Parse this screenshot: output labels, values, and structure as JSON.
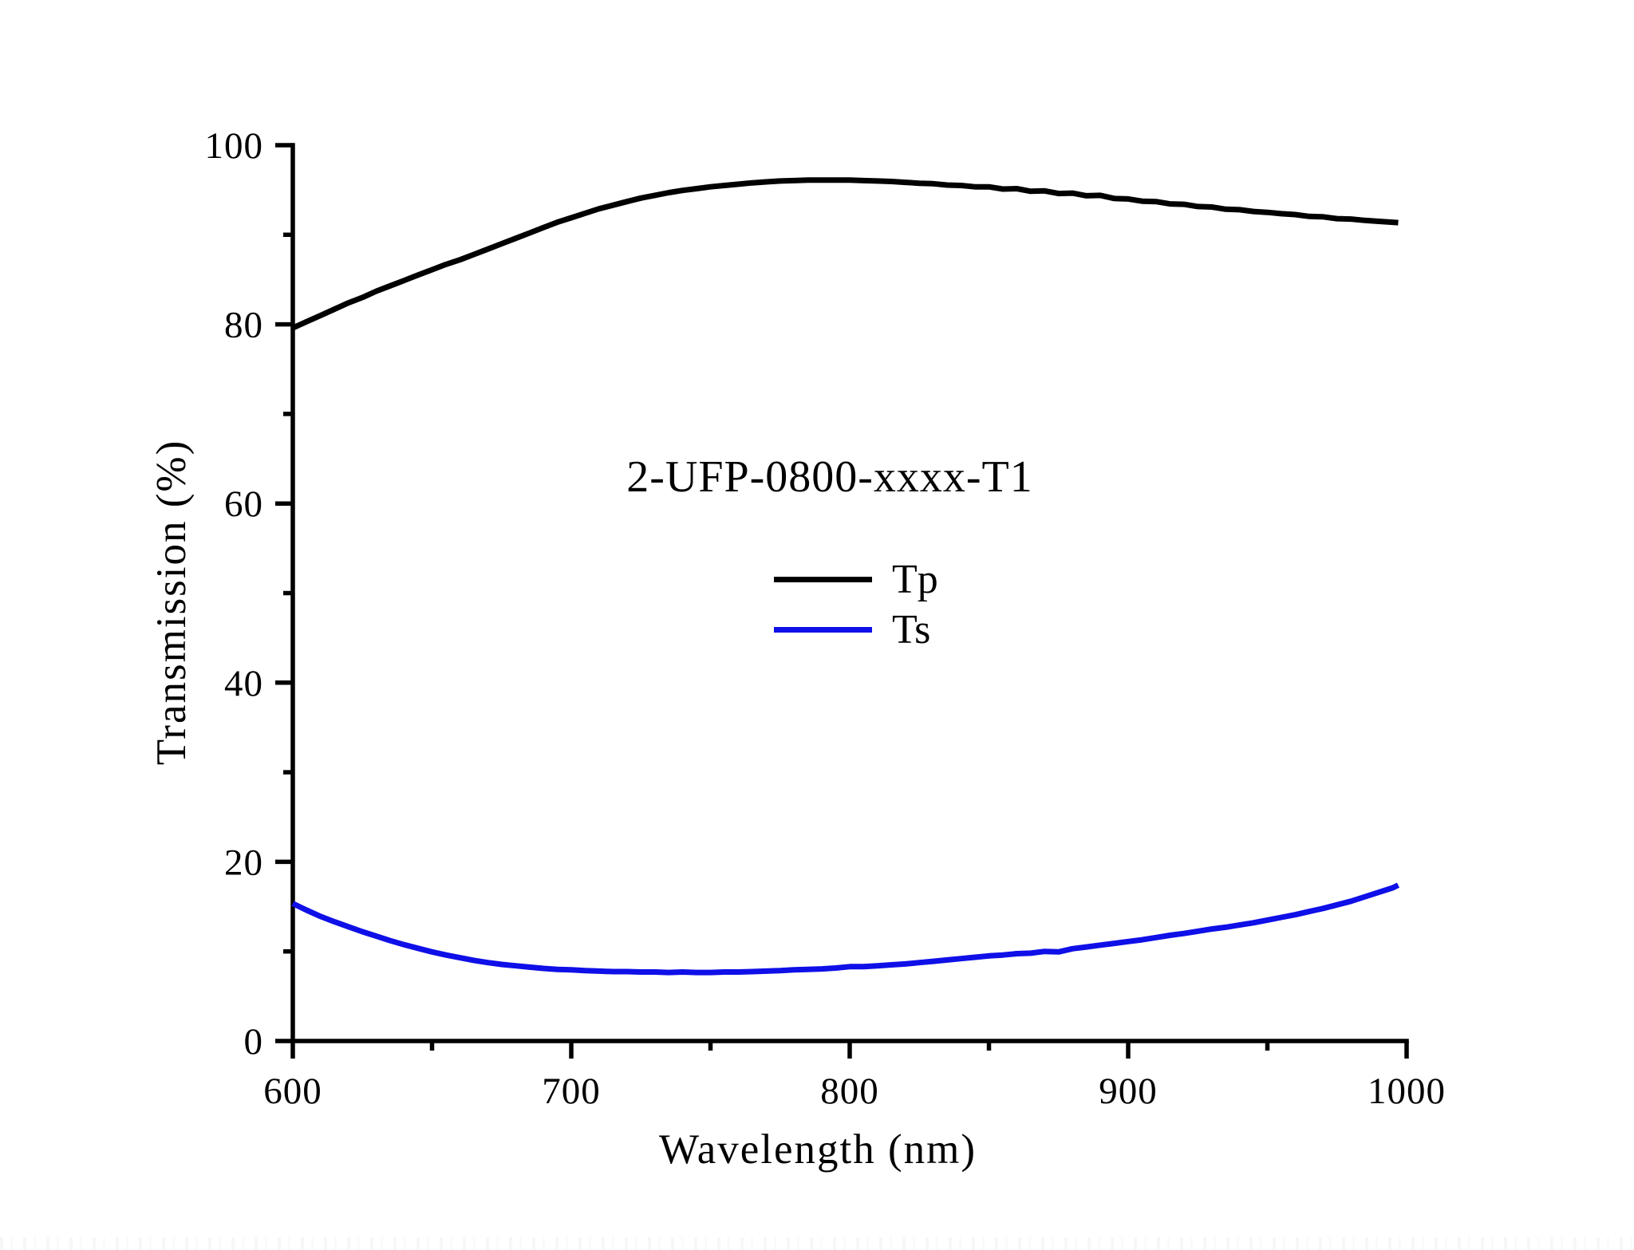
{
  "chart_data": {
    "type": "line",
    "title": "2-UFP-0800-xxxx-T1",
    "xlabel": "Wavelength (nm)",
    "ylabel": "Transmission (%)",
    "xlim": [
      600,
      1000
    ],
    "ylim": [
      0,
      100
    ],
    "x_ticks": [
      600,
      700,
      800,
      900,
      1000
    ],
    "x_minor_ticks": [
      650,
      750,
      850,
      950
    ],
    "y_ticks": [
      0,
      20,
      40,
      60,
      80,
      100
    ],
    "y_minor_ticks": [
      10,
      30,
      50,
      70,
      90
    ],
    "grid": false,
    "legend_position": "center",
    "background_color": "#ffffff",
    "axis_color": "#000000",
    "x": [
      600,
      605,
      610,
      615,
      620,
      625,
      630,
      635,
      640,
      645,
      650,
      655,
      660,
      665,
      670,
      675,
      680,
      685,
      690,
      695,
      700,
      705,
      710,
      715,
      720,
      725,
      730,
      735,
      740,
      745,
      750,
      755,
      760,
      765,
      770,
      775,
      780,
      785,
      790,
      795,
      800,
      805,
      810,
      815,
      820,
      825,
      830,
      835,
      840,
      845,
      850,
      855,
      860,
      865,
      870,
      875,
      880,
      885,
      890,
      895,
      900,
      905,
      910,
      915,
      920,
      925,
      930,
      935,
      940,
      945,
      950,
      955,
      960,
      965,
      970,
      975,
      980,
      985,
      990,
      995,
      997
    ],
    "series": [
      {
        "name": "Tp",
        "color": "#000000",
        "values": [
          79.6,
          80.3,
          81.0,
          81.7,
          82.4,
          83.0,
          83.7,
          84.3,
          84.9,
          85.5,
          86.1,
          86.7,
          87.2,
          87.8,
          88.4,
          89.0,
          89.6,
          90.2,
          90.8,
          91.4,
          91.9,
          92.4,
          92.9,
          93.3,
          93.7,
          94.1,
          94.4,
          94.7,
          94.95,
          95.15,
          95.35,
          95.5,
          95.65,
          95.8,
          95.9,
          96.0,
          96.05,
          96.1,
          96.1,
          96.1,
          96.1,
          96.05,
          96.0,
          95.95,
          95.85,
          95.75,
          95.7,
          95.55,
          95.5,
          95.35,
          95.35,
          95.1,
          95.15,
          94.85,
          94.9,
          94.6,
          94.65,
          94.35,
          94.4,
          94.05,
          94.0,
          93.75,
          93.7,
          93.45,
          93.4,
          93.15,
          93.1,
          92.85,
          92.8,
          92.6,
          92.5,
          92.35,
          92.25,
          92.05,
          92.0,
          91.8,
          91.75,
          91.6,
          91.5,
          91.4,
          91.35
        ]
      },
      {
        "name": "Ts",
        "color": "#0f0fe8",
        "values": [
          15.35,
          14.6,
          13.9,
          13.3,
          12.75,
          12.2,
          11.7,
          11.2,
          10.75,
          10.35,
          9.95,
          9.6,
          9.3,
          9.0,
          8.75,
          8.55,
          8.4,
          8.25,
          8.1,
          8.0,
          7.95,
          7.85,
          7.8,
          7.75,
          7.75,
          7.7,
          7.7,
          7.65,
          7.7,
          7.65,
          7.65,
          7.7,
          7.7,
          7.75,
          7.8,
          7.85,
          7.95,
          8.0,
          8.05,
          8.15,
          8.3,
          8.3,
          8.4,
          8.5,
          8.6,
          8.75,
          8.9,
          9.05,
          9.2,
          9.35,
          9.5,
          9.6,
          9.75,
          9.8,
          10.0,
          9.95,
          10.3,
          10.5,
          10.7,
          10.9,
          11.1,
          11.3,
          11.55,
          11.8,
          12.0,
          12.25,
          12.5,
          12.7,
          12.95,
          13.2,
          13.5,
          13.8,
          14.1,
          14.45,
          14.8,
          15.2,
          15.6,
          16.1,
          16.6,
          17.1,
          17.4
        ]
      }
    ]
  }
}
